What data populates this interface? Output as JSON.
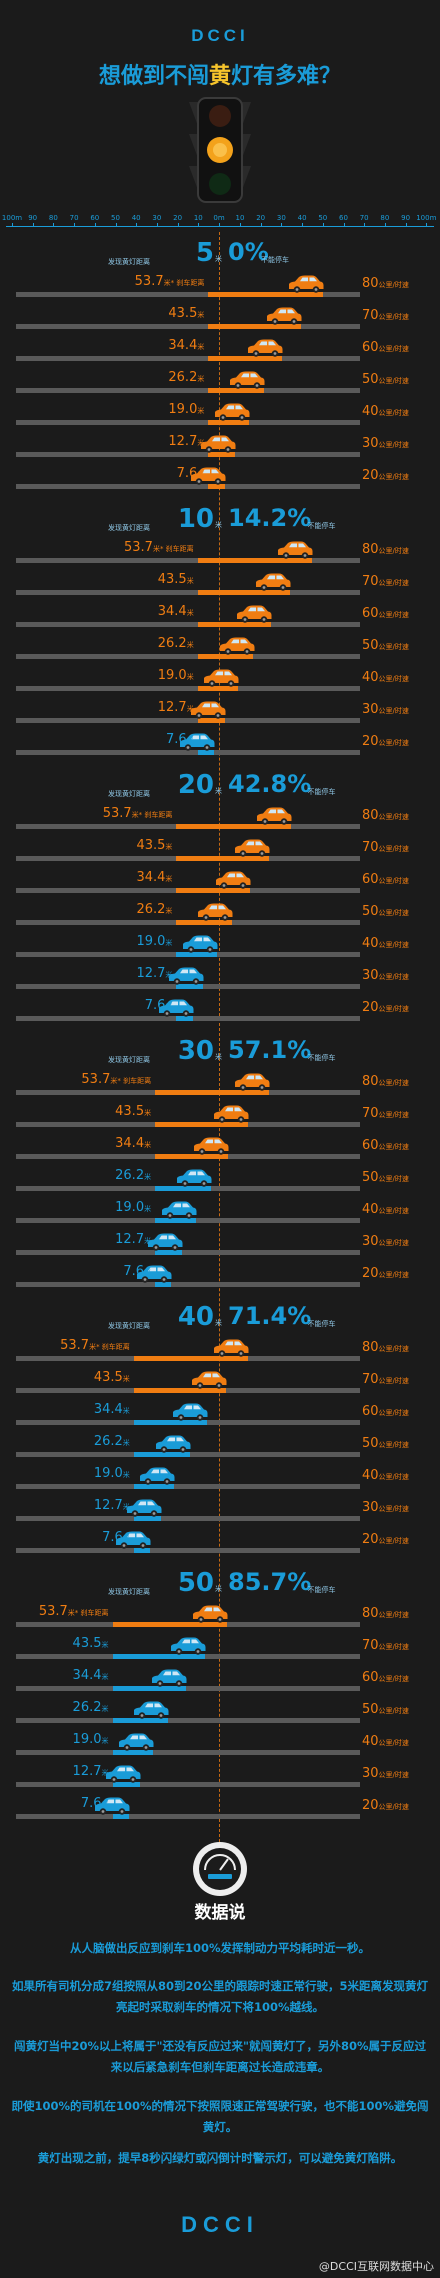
{
  "header": {
    "logo": "DCCI",
    "title_pre": "想做到不闯",
    "title_highlight": "黄",
    "title_post": "灯有多难？"
  },
  "scale": {
    "left_labels": [
      "100m",
      "90",
      "80",
      "70",
      "60",
      "50",
      "40",
      "30",
      "20",
      "10"
    ],
    "center_label": "0m",
    "right_labels": [
      "10",
      "20",
      "30",
      "40",
      "50",
      "60",
      "70",
      "80",
      "90",
      "100m"
    ]
  },
  "colors": {
    "accent_blue": "#1a9cd8",
    "orange": "#f07d12",
    "yellow": "#f7c52c",
    "background": "#1b1b1b",
    "track": "#5a5a5a"
  },
  "labels": {
    "section_prefix": "发现黄灯距离",
    "unit_m": "米",
    "fail_suffix": "不能停车",
    "first_row_note": "* 刹车距离",
    "speed_unit": "公里/时速"
  },
  "chart_data": {
    "type": "bar",
    "title": "想做到不闯黄灯有多难？",
    "xlabel": "",
    "ylabel": "",
    "xlim": [
      -100,
      100
    ],
    "speeds": [
      80,
      70,
      60,
      50,
      40,
      30,
      20
    ],
    "braking_distances": [
      53.7,
      43.5,
      34.4,
      26.2,
      19.0,
      12.7,
      7.6
    ],
    "braking_distance_labels": [
      "53.7",
      "43.5",
      "34.4",
      "26.2",
      "19.0",
      "12.7",
      "7.6"
    ],
    "sections": [
      {
        "distance": 5,
        "fail_rate": "0%"
      },
      {
        "distance": 10,
        "fail_rate": "14.2%"
      },
      {
        "distance": 20,
        "fail_rate": "42.8%"
      },
      {
        "distance": 30,
        "fail_rate": "57.1%"
      },
      {
        "distance": 40,
        "fail_rate": "71.4%"
      },
      {
        "distance": 50,
        "fail_rate": "85.7%"
      }
    ]
  },
  "footer": {
    "info_title": "数据说",
    "paragraphs": [
      "从人脑做出反应到刹车100%发挥制动力平均耗时近一秒。",
      "如果所有司机分成7组按照从80到20公里的跟踪时速正常行驶，5米距离发现黄灯亮起时采取刹车的情况下将100%越线。",
      "闯黄灯当中20%以上将属于\"还没有反应过来\"就闯黄灯了，另外80%属于反应过来以后紧急刹车但刹车距离过长造成违章。",
      "即使100%的司机在100%的情况下按照限速正常驾驶行驶，也不能100%避免闯黄灯。",
      "黄灯出现之前，提早8秒闪绿灯或闪倒计时警示灯，可以避免黄灯陷阱。"
    ],
    "logo": "DCCI",
    "watermark": "@DCCI互联网数据中心"
  }
}
